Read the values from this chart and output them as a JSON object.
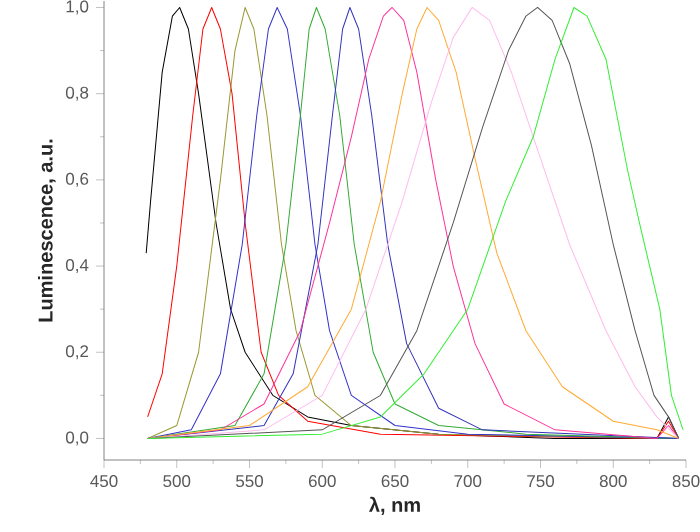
{
  "chart_data": {
    "type": "line",
    "xlabel": "λ, nm",
    "ylabel": "Luminescence, a.u.",
    "xlim": [
      450,
      850
    ],
    "ylim": [
      -0.05,
      1.015
    ],
    "xticks": [
      450,
      {
        "value": 475,
        "label": null
      },
      500,
      {
        "value": 525,
        "label": null
      },
      550,
      {
        "value": 575,
        "label": null
      },
      600,
      {
        "value": 625,
        "label": null
      },
      650,
      {
        "value": 675,
        "label": null
      },
      700,
      {
        "value": 725,
        "label": null
      },
      750,
      {
        "value": 775,
        "label": null
      },
      800,
      {
        "value": 825,
        "label": null
      },
      850
    ],
    "yticks": [
      {
        "value": 0,
        "label": "0,0"
      },
      {
        "value": 0.1,
        "label": null
      },
      {
        "value": 0.2,
        "label": "0,2"
      },
      {
        "value": 0.3,
        "label": null
      },
      {
        "value": 0.4,
        "label": "0,4"
      },
      {
        "value": 0.5,
        "label": null
      },
      {
        "value": 0.6,
        "label": "0,6"
      },
      {
        "value": 0.7,
        "label": null
      },
      {
        "value": 0.8,
        "label": "0,8"
      },
      {
        "value": 0.9,
        "label": null
      },
      {
        "value": 1.0,
        "label": "1,0"
      }
    ],
    "grid": false,
    "marker": "none",
    "line_style": "solid",
    "series": [
      {
        "color": "#000000",
        "x": [
          479,
          482,
          490,
          497,
          502,
          508,
          515,
          527,
          537,
          547,
          566,
          590,
          620,
          680,
          760,
          830,
          838,
          845
        ],
        "values": [
          0.43,
          0.55,
          0.85,
          0.98,
          1.0,
          0.95,
          0.8,
          0.5,
          0.3,
          0.2,
          0.1,
          0.05,
          0.03,
          0.01,
          0.0,
          0.0,
          0.05,
          0.0
        ]
      },
      {
        "color": "#ff0000",
        "x": [
          480,
          490,
          500,
          511,
          518,
          524,
          530,
          538,
          547,
          558,
          570,
          590,
          640,
          830,
          838,
          845
        ],
        "values": [
          0.05,
          0.15,
          0.4,
          0.75,
          0.95,
          1.0,
          0.95,
          0.8,
          0.5,
          0.2,
          0.1,
          0.04,
          0.01,
          0.0,
          0.04,
          0.0
        ]
      },
      {
        "color": "#999933",
        "x": [
          480,
          500,
          515,
          530,
          540,
          547,
          553,
          562,
          572,
          582,
          595,
          620,
          680,
          845
        ],
        "values": [
          0.0,
          0.03,
          0.2,
          0.6,
          0.9,
          1.0,
          0.95,
          0.75,
          0.45,
          0.25,
          0.1,
          0.03,
          0.01,
          0.0
        ]
      },
      {
        "color": "#3333cc",
        "x": [
          480,
          510,
          530,
          545,
          555,
          563,
          569,
          576,
          585,
          595,
          605,
          620,
          650,
          700,
          845
        ],
        "values": [
          0.0,
          0.02,
          0.15,
          0.45,
          0.75,
          0.95,
          1.0,
          0.95,
          0.75,
          0.45,
          0.25,
          0.1,
          0.03,
          0.01,
          0.0
        ]
      },
      {
        "color": "#33aa33",
        "x": [
          480,
          540,
          560,
          575,
          585,
          591,
          596,
          602,
          612,
          622,
          635,
          650,
          680,
          740,
          845
        ],
        "values": [
          0.0,
          0.03,
          0.15,
          0.45,
          0.75,
          0.95,
          1.0,
          0.95,
          0.75,
          0.45,
          0.2,
          0.08,
          0.03,
          0.01,
          0.0
        ]
      },
      {
        "color": "#3333bb",
        "x": [
          480,
          560,
          580,
          597,
          607,
          614,
          619,
          625,
          634,
          645,
          658,
          680,
          710,
          845
        ],
        "values": [
          0.0,
          0.03,
          0.15,
          0.45,
          0.75,
          0.95,
          1.0,
          0.95,
          0.75,
          0.45,
          0.22,
          0.07,
          0.02,
          0.0
        ]
      },
      {
        "color": "#ff3399",
        "x": [
          480,
          530,
          560,
          585,
          605,
          620,
          632,
          642,
          648,
          656,
          665,
          678,
          690,
          705,
          725,
          760,
          830,
          838,
          845
        ],
        "values": [
          0.0,
          0.02,
          0.08,
          0.25,
          0.5,
          0.7,
          0.88,
          0.98,
          1.0,
          0.97,
          0.85,
          0.6,
          0.4,
          0.22,
          0.08,
          0.02,
          0.0,
          0.03,
          0.0
        ]
      },
      {
        "color": "#ffaa33",
        "x": [
          480,
          550,
          590,
          620,
          640,
          655,
          665,
          672,
          680,
          692,
          705,
          720,
          740,
          765,
          800,
          830,
          845
        ],
        "values": [
          0.0,
          0.03,
          0.12,
          0.3,
          0.55,
          0.8,
          0.95,
          1.0,
          0.97,
          0.85,
          0.65,
          0.43,
          0.25,
          0.12,
          0.04,
          0.02,
          0.0
        ]
      },
      {
        "color": "#ffbbee",
        "x": [
          480,
          560,
          600,
          630,
          655,
          675,
          690,
          703,
          715,
          730,
          750,
          770,
          795,
          815,
          830,
          845
        ],
        "values": [
          0.0,
          0.02,
          0.1,
          0.3,
          0.55,
          0.78,
          0.93,
          1.0,
          0.97,
          0.85,
          0.65,
          0.45,
          0.25,
          0.12,
          0.05,
          0.0
        ]
      },
      {
        "color": "#555555",
        "x": [
          480,
          600,
          640,
          665,
          690,
          710,
          728,
          740,
          748,
          758,
          770,
          785,
          800,
          815,
          828,
          838,
          845
        ],
        "values": [
          0.0,
          0.02,
          0.1,
          0.25,
          0.5,
          0.72,
          0.9,
          0.98,
          1.0,
          0.97,
          0.87,
          0.68,
          0.45,
          0.25,
          0.1,
          0.05,
          0.0
        ]
      },
      {
        "color": "#33ee33",
        "x": [
          480,
          600,
          640,
          670,
          700,
          726,
          745,
          760,
          773,
          782,
          795,
          810,
          818,
          832,
          840,
          848
        ],
        "values": [
          0.0,
          0.01,
          0.05,
          0.15,
          0.3,
          0.55,
          0.7,
          0.88,
          1.0,
          0.98,
          0.88,
          0.62,
          0.5,
          0.3,
          0.1,
          0.02
        ]
      }
    ]
  }
}
